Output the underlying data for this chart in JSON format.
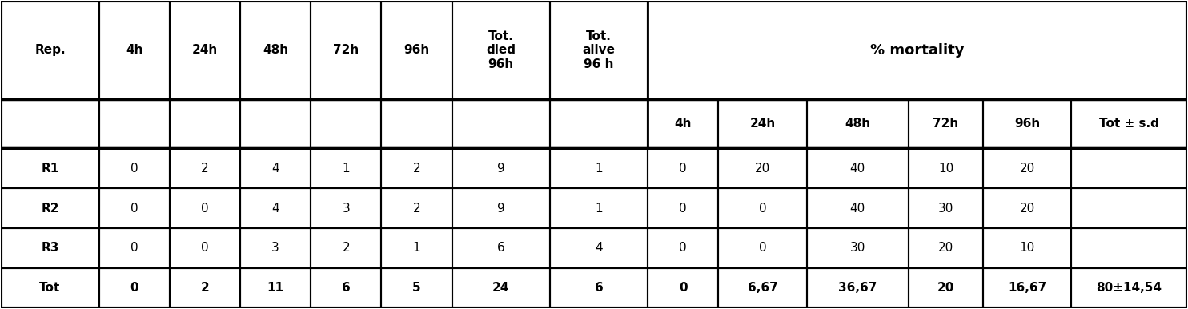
{
  "col_headers_row1": [
    "Rep.",
    "4h",
    "24h",
    "48h",
    "72h",
    "96h",
    "Tot.\ndied\n96h",
    "Tot.\nalive\n96 h",
    "% mortality",
    "",
    "",
    "",
    "",
    ""
  ],
  "col_headers_row2": [
    "",
    "",
    "",
    "",
    "",
    "",
    "",
    "",
    "4h",
    "24h",
    "48h",
    "72h",
    "96h",
    "Tot ± s.d"
  ],
  "rows": [
    [
      "R1",
      "0",
      "2",
      "4",
      "1",
      "2",
      "9",
      "1",
      "0",
      "20",
      "40",
      "10",
      "20",
      ""
    ],
    [
      "R2",
      "0",
      "0",
      "4",
      "3",
      "2",
      "9",
      "1",
      "0",
      "0",
      "40",
      "30",
      "20",
      ""
    ],
    [
      "R3",
      "0",
      "0",
      "3",
      "2",
      "1",
      "6",
      "4",
      "0",
      "0",
      "30",
      "20",
      "10",
      ""
    ],
    [
      "Tot",
      "0",
      "2",
      "11",
      "6",
      "5",
      "24",
      "6",
      "0",
      "6,67",
      "36,67",
      "20",
      "16,67",
      "80±14,54"
    ]
  ],
  "bg_color": "#ffffff",
  "text_color": "#000000",
  "line_color": "#000000"
}
